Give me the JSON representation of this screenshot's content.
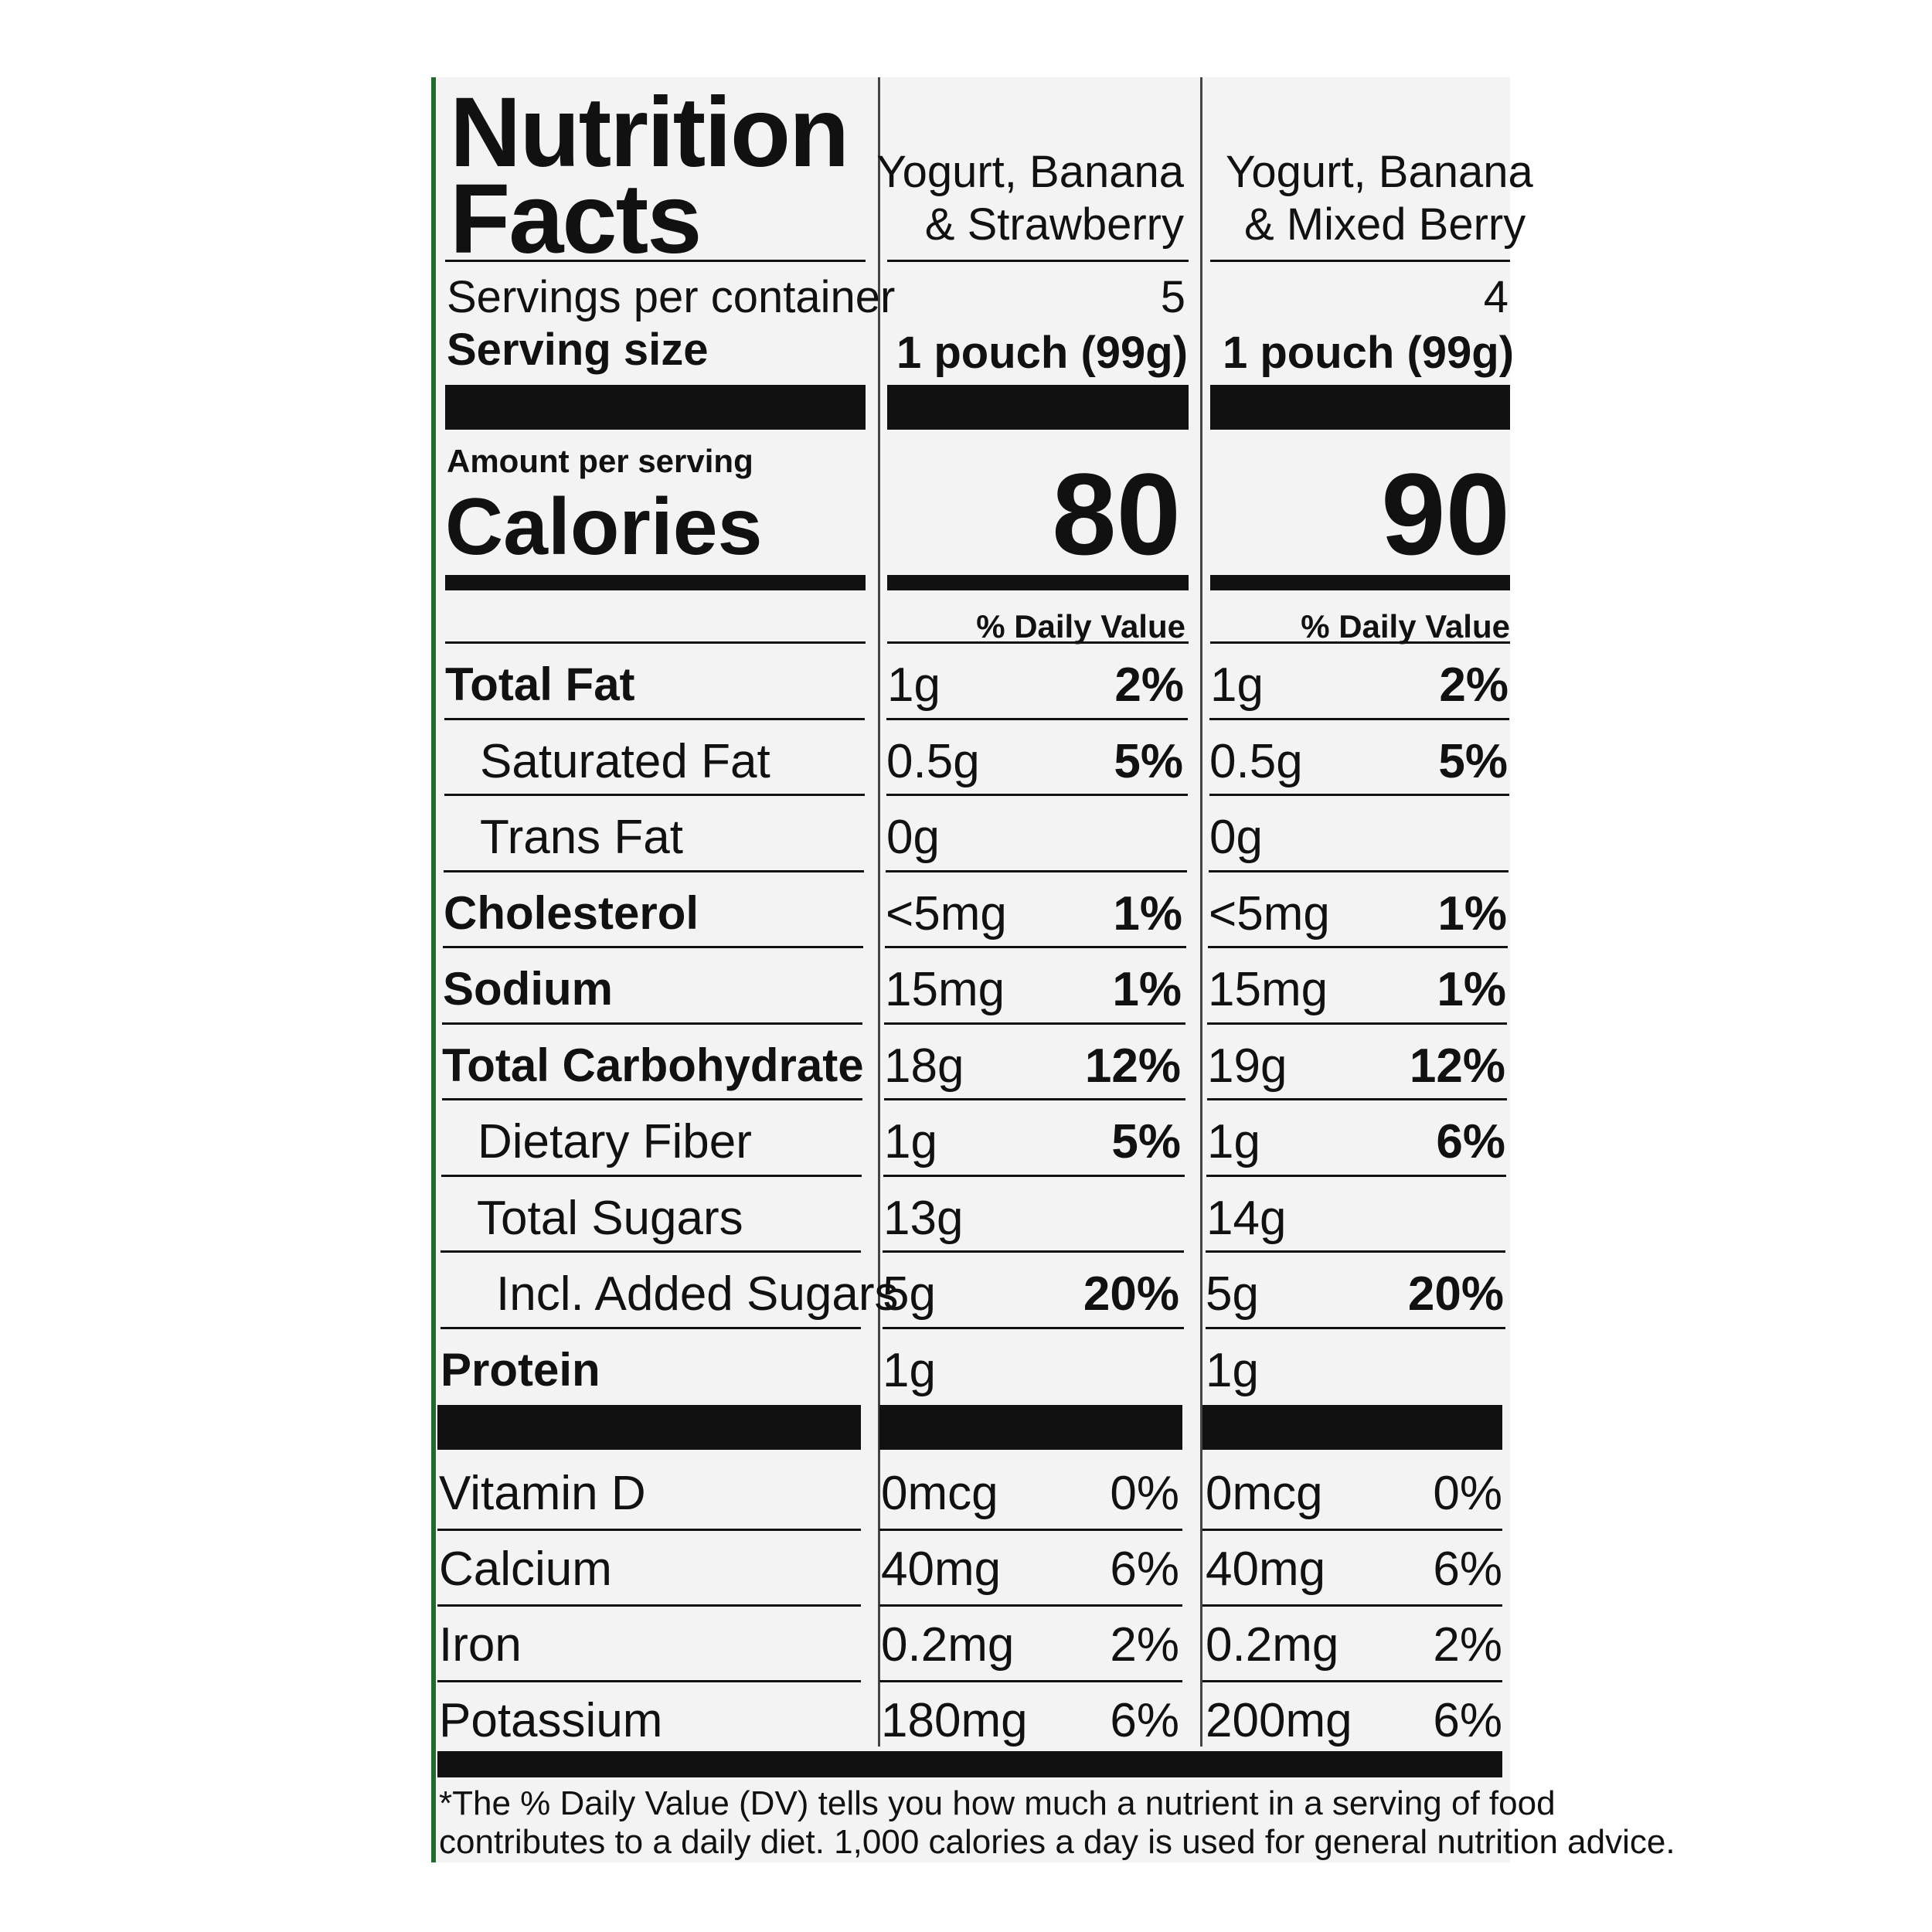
{
  "label": {
    "title_line1": "Nutrition",
    "title_line2": "Facts",
    "columns": [
      {
        "name_line1": "Yogurt, Banana",
        "name_line2": "& Strawberry",
        "servings": "5",
        "serving_size": "1 pouch (99g)",
        "calories": "80"
      },
      {
        "name_line1": "Yogurt, Banana",
        "name_line2": "& Mixed Berry",
        "servings": "4",
        "serving_size": "1 pouch (99g)",
        "calories": "90"
      }
    ],
    "servings_per_container_label": "Servings per container",
    "serving_size_label": "Serving size",
    "amount_per_serving_label": "Amount per serving",
    "calories_label": "Calories",
    "daily_value_header": "% Daily Value",
    "nutrients": [
      {
        "label": "Total Fat",
        "c1_amt": "1g",
        "c1_dv": "2%",
        "c2_amt": "1g",
        "c2_dv": "2%"
      },
      {
        "label": "Saturated Fat",
        "c1_amt": "0.5g",
        "c1_dv": "5%",
        "c2_amt": "0.5g",
        "c2_dv": "5%"
      },
      {
        "label": "Trans Fat",
        "c1_amt": "0g",
        "c1_dv": "",
        "c2_amt": "0g",
        "c2_dv": ""
      },
      {
        "label": "Cholesterol",
        "c1_amt": "<5mg",
        "c1_dv": "1%",
        "c2_amt": "<5mg",
        "c2_dv": "1%"
      },
      {
        "label": "Sodium",
        "c1_amt": "15mg",
        "c1_dv": "1%",
        "c2_amt": "15mg",
        "c2_dv": "1%"
      },
      {
        "label": "Total Carbohydrate",
        "c1_amt": "18g",
        "c1_dv": "12%",
        "c2_amt": "19g",
        "c2_dv": "12%"
      },
      {
        "label": "Dietary Fiber",
        "c1_amt": "1g",
        "c1_dv": "5%",
        "c2_amt": "1g",
        "c2_dv": "6%"
      },
      {
        "label": "Total Sugars",
        "c1_amt": "13g",
        "c1_dv": "",
        "c2_amt": "14g",
        "c2_dv": ""
      },
      {
        "label": "Incl. Added Sugars",
        "c1_amt": "5g",
        "c1_dv": "20%",
        "c2_amt": "5g",
        "c2_dv": "20%"
      },
      {
        "label": "Protein",
        "c1_amt": "1g",
        "c1_dv": "",
        "c2_amt": "1g",
        "c2_dv": ""
      }
    ],
    "vitamins": [
      {
        "label": "Vitamin D",
        "c1_amt": "0mcg",
        "c1_dv": "0%",
        "c2_amt": "0mcg",
        "c2_dv": "0%"
      },
      {
        "label": "Calcium",
        "c1_amt": "40mg",
        "c1_dv": "6%",
        "c2_amt": "40mg",
        "c2_dv": "6%"
      },
      {
        "label": "Iron",
        "c1_amt": "0.2mg",
        "c1_dv": "2%",
        "c2_amt": "0.2mg",
        "c2_dv": "2%"
      },
      {
        "label": "Potassium",
        "c1_amt": "180mg",
        "c1_dv": "6%",
        "c2_amt": "200mg",
        "c2_dv": "6%"
      }
    ],
    "footnote_line1": "*The % Daily Value (DV) tells you how much a nutrient in a serving of food",
    "footnote_line2": "contributes to a daily diet. 1,000 calories a day is used for general nutrition advice."
  }
}
